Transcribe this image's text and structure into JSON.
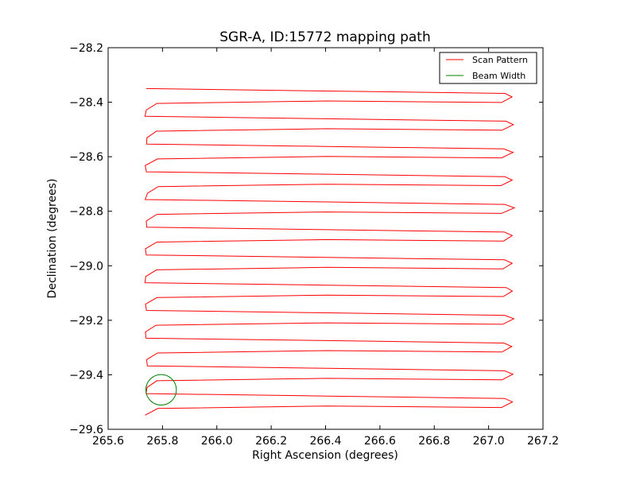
{
  "chart_data": {
    "type": "line",
    "title": "SGR-A, ID:15772 mapping path",
    "xlabel": "Right Ascension (degrees)",
    "ylabel": "Declination (degrees)",
    "xlim": [
      265.6,
      267.2
    ],
    "ylim": [
      -29.6,
      -28.2
    ],
    "x_ticks": [
      265.6,
      265.8,
      266.0,
      266.2,
      266.4,
      266.6,
      266.8,
      267.0,
      267.2
    ],
    "x_tick_labels": [
      "265.6",
      "265.8",
      "266.0",
      "266.2",
      "266.4",
      "266.6",
      "266.8",
      "267.0",
      "267.2"
    ],
    "y_ticks": [
      -28.2,
      -28.4,
      -28.6,
      -28.8,
      -29.0,
      -29.2,
      -29.4,
      -29.6
    ],
    "y_tick_labels": [
      "−28.2",
      "−28.4",
      "−28.6",
      "−28.8",
      "−29.0",
      "−29.2",
      "−29.4",
      "−29.6"
    ],
    "grid": false,
    "legend_position": "top-right",
    "series": [
      {
        "name": "Scan Pattern",
        "color": "#ff0000",
        "scan": {
          "x_left": 265.74,
          "x_right": 267.07,
          "y_start": -28.35,
          "y_end": -29.52,
          "rows": 24
        }
      },
      {
        "name": "Beam Width",
        "color": "#008000",
        "circle": {
          "center": [
            265.795,
            -29.455
          ],
          "radius_y": 0.056
        }
      }
    ]
  }
}
